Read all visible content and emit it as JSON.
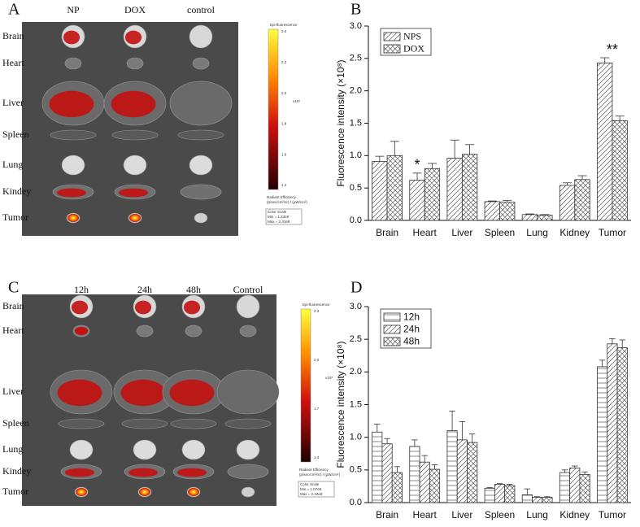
{
  "panel_labels": [
    "A",
    "B",
    "C",
    "D"
  ],
  "panel_a": {
    "column_labels": [
      "NP",
      "DOX",
      "control"
    ],
    "row_labels": [
      "Brain",
      "Heart",
      "Liver",
      "Spleen",
      "Lung",
      "Kindey",
      "Tumor"
    ],
    "colorbar": {
      "title": "Epi-fluorescence",
      "ticks": [
        "2.4",
        "2.2",
        "2.0",
        "1.8",
        "1.6",
        "1.4"
      ],
      "exponent": "x10⁸",
      "unit": "Radiant Efficiency",
      "unit_detail": "(p/sec/cm²/sr) / (µW/cm²)",
      "scale_title": "Color Scale",
      "min": "Min = 1.24e8",
      "max": "Max = 2.41e8"
    }
  },
  "panel_c": {
    "column_labels": [
      "12h",
      "24h",
      "48h",
      "Control"
    ],
    "row_labels": [
      "Brain",
      "Heart",
      "Liver",
      "Spleen",
      "Lung",
      "Kindey",
      "Tumor"
    ],
    "colorbar": {
      "title": "Epi-fluorescence",
      "ticks": [
        "2.3",
        "2.0",
        "1.7",
        "1.3"
      ],
      "exponent": "x10⁸",
      "unit": "Radiant Efficiency",
      "unit_detail": "(p/sec/cm²/sr) / (µW/cm²)",
      "scale_title": "Color Scale",
      "min": "Min = 1.07e8",
      "max": "Max = 2.44e8"
    }
  },
  "chart_data": [
    {
      "type": "bar",
      "y_label": "Fluorescence intensity (×10⁸)",
      "categories": [
        "Brain",
        "Heart",
        "Liver",
        "Spleen",
        "Lung",
        "Kidney",
        "Tumor"
      ],
      "series": [
        {
          "name": "NPS",
          "color": "#555555",
          "hatch": "diagonal",
          "values": [
            0.91,
            0.62,
            0.96,
            0.29,
            0.09,
            0.54,
            2.43
          ],
          "errors": [
            0.08,
            0.11,
            0.28,
            0.01,
            0.01,
            0.04,
            0.08
          ]
        },
        {
          "name": "DOX",
          "color": "#555555",
          "hatch": "crosshatch",
          "values": [
            1.0,
            0.8,
            1.02,
            0.28,
            0.08,
            0.63,
            1.54
          ],
          "errors": [
            0.22,
            0.08,
            0.15,
            0.03,
            0.01,
            0.06,
            0.07
          ]
        }
      ],
      "annotations": [
        {
          "text": "*",
          "category": "Heart",
          "series": "NPS"
        },
        {
          "text": "**",
          "category": "Tumor",
          "series": "NPS"
        }
      ],
      "ylim": [
        0,
        3.0
      ],
      "yticks": [
        {
          "value": 0,
          "label": "0.0"
        },
        0.5,
        {
          "value": 1,
          "label": "1.0"
        },
        1.5,
        {
          "value": 2,
          "label": "2.0"
        },
        2.5,
        {
          "value": 3,
          "label": "3.0"
        }
      ],
      "legend": "upper left"
    },
    {
      "type": "bar",
      "y_label": "Fluorescence intensity (×10⁸)",
      "categories": [
        "Brain",
        "Heart",
        "Liver",
        "Spleen",
        "Lung",
        "Kidney",
        "Tumor"
      ],
      "series": [
        {
          "name": "12h",
          "color": "#555555",
          "hatch": "horizontal",
          "values": [
            1.08,
            0.86,
            1.1,
            0.22,
            0.12,
            0.46,
            2.08
          ],
          "errors": [
            0.12,
            0.1,
            0.3,
            0.01,
            0.09,
            0.04,
            0.1
          ]
        },
        {
          "name": "24h",
          "color": "#555555",
          "hatch": "diagonal",
          "values": [
            0.9,
            0.62,
            0.96,
            0.28,
            0.08,
            0.53,
            2.43
          ],
          "errors": [
            0.08,
            0.1,
            0.28,
            0.01,
            0.01,
            0.03,
            0.08
          ]
        },
        {
          "name": "48h",
          "color": "#555555",
          "hatch": "crosshatch",
          "values": [
            0.46,
            0.51,
            0.92,
            0.26,
            0.08,
            0.43,
            2.37
          ],
          "errors": [
            0.09,
            0.07,
            0.13,
            0.02,
            0.01,
            0.04,
            0.12
          ]
        }
      ],
      "ylim": [
        0,
        3.0
      ],
      "yticks": [
        {
          "value": 0,
          "label": "0.0"
        },
        0.5,
        {
          "value": 1,
          "label": "1.0"
        },
        1.5,
        {
          "value": 2,
          "label": "2.0"
        },
        2.5,
        {
          "value": 3,
          "label": "3.0"
        }
      ],
      "legend": "upper left"
    }
  ]
}
